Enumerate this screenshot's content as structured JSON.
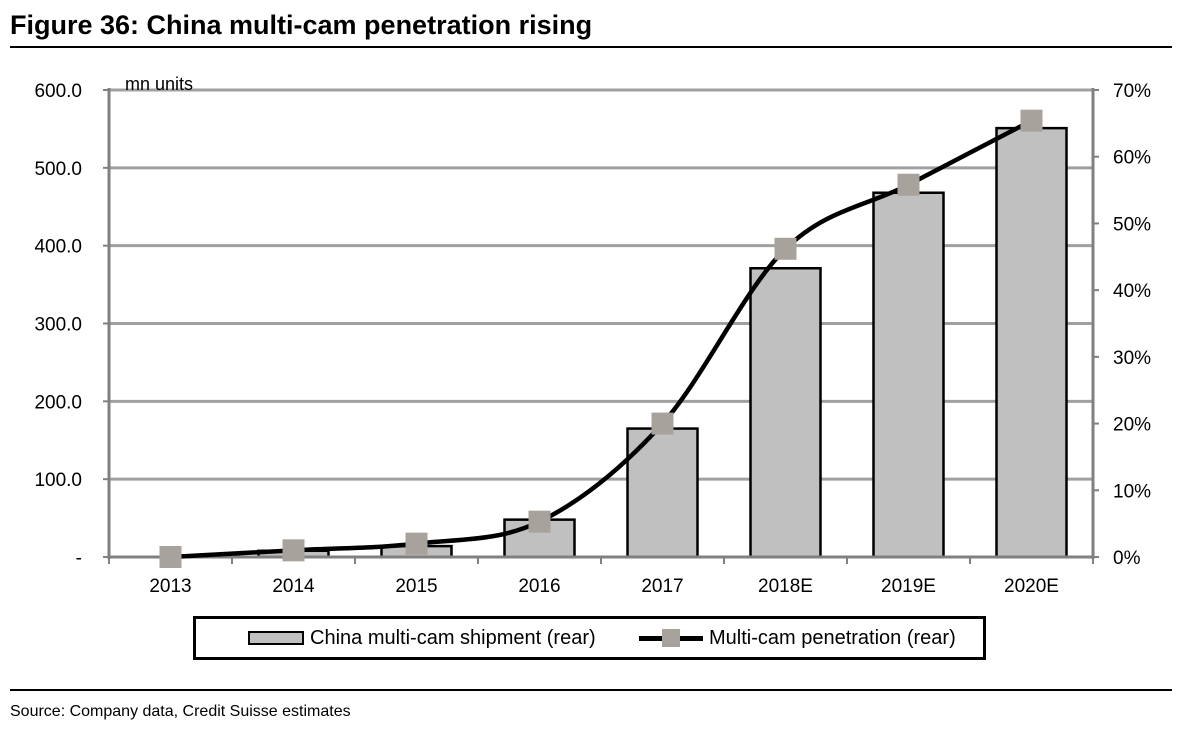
{
  "title": "Figure 36: China multi-cam penetration rising",
  "source": "Source: Company data, Credit Suisse estimates",
  "chart_data": {
    "type": "bar",
    "categories": [
      "2013",
      "2014",
      "2015",
      "2016",
      "2017",
      "2018E",
      "2019E",
      "2020E"
    ],
    "series": [
      {
        "name": "China multi-cam shipment (rear)",
        "type": "bar",
        "axis": "left",
        "values": [
          0,
          8,
          14,
          48,
          165,
          371,
          468,
          551
        ],
        "color": "#c0c0c0"
      },
      {
        "name": "Multi-cam penetration (rear)",
        "type": "line",
        "axis": "right",
        "values": [
          0.0,
          0.01,
          0.02,
          0.053,
          0.2,
          0.462,
          0.558,
          0.654
        ],
        "color": "#000000",
        "marker_color": "#a8a29c"
      }
    ],
    "y_left": {
      "label": "mn units",
      "range": [
        0,
        600
      ],
      "ticks": [
        0,
        100,
        200,
        300,
        400,
        500,
        600
      ],
      "tick_labels": [
        "-",
        "100.0",
        "200.0",
        "300.0",
        "400.0",
        "500.0",
        "600.0"
      ]
    },
    "y_right": {
      "range": [
        0,
        0.7
      ],
      "ticks": [
        0,
        0.1,
        0.2,
        0.3,
        0.4,
        0.5,
        0.6,
        0.7
      ],
      "tick_labels": [
        "0%",
        "10%",
        "20%",
        "30%",
        "40%",
        "50%",
        "60%",
        "70%"
      ]
    },
    "grid": true,
    "legend": "bottom",
    "gridline_color": "#a0a0a0"
  }
}
